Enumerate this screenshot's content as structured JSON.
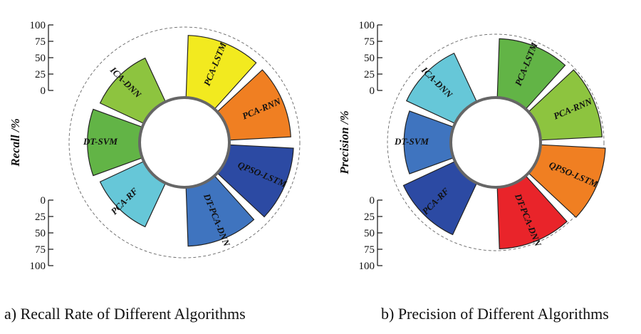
{
  "chart_data": [
    {
      "type": "radial-bar",
      "caption": "a) Recall Rate of Different Algorithms",
      "ylabel": "Recall /%",
      "ylim": [
        0,
        100
      ],
      "ticks": [
        "0",
        "25",
        "50",
        "75",
        "100"
      ],
      "ticks_upper": [
        "100",
        "75",
        "50",
        "25",
        "0"
      ],
      "categories": [
        "PCA-LSTM",
        "PCA-RNN",
        "QPSO-LSTM",
        "DT-PCA-DNN",
        "PCA-RF",
        "DT-SVM",
        "ICA-DNN"
      ],
      "values": [
        93,
        92,
        96,
        88,
        72,
        78,
        72
      ],
      "colors": [
        "#f2ea1f",
        "#f07f22",
        "#2c4aa3",
        "#3f74bf",
        "#66c7d8",
        "#62b446",
        "#8dc43f"
      ]
    },
    {
      "type": "radial-bar",
      "caption": "b) Precision of Different Algorithms",
      "ylabel": "Precision /%",
      "ylim": [
        0,
        100
      ],
      "ticks": [
        "0",
        "25",
        "50",
        "75",
        "100"
      ],
      "ticks_upper": [
        "100",
        "75",
        "50",
        "25",
        "0"
      ],
      "categories": [
        "PCA-LSTM",
        "PCA-RNN",
        "QPSO-LSTM",
        "DT-PCA-DNN",
        "PCA-RF",
        "DT-SVM",
        "ICA-DNN"
      ],
      "values": [
        88,
        92,
        97,
        92,
        85,
        70,
        80
      ],
      "colors": [
        "#62b446",
        "#8dc43f",
        "#f07f22",
        "#e9242a",
        "#2c4aa3",
        "#3f74bf",
        "#66c7d8"
      ]
    }
  ]
}
